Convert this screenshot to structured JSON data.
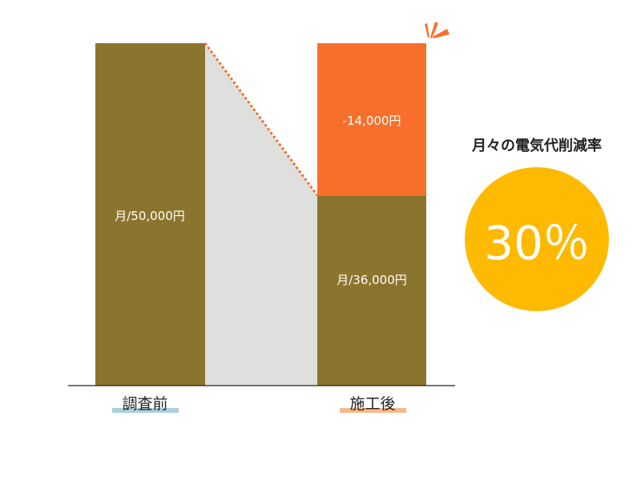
{
  "chart_data": {
    "type": "bar",
    "categories": [
      "調査前",
      "施工後"
    ],
    "series": [
      {
        "values": [
          50000,
          36000
        ]
      },
      {
        "values": [
          0,
          14000
        ]
      }
    ],
    "data_labels": [
      "月/50,000円",
      "月/36,000円",
      "-14,000円"
    ],
    "stacked": true,
    "grid": false
  },
  "summary": {
    "title": "月々の電気代削減率",
    "value": "30％"
  },
  "colors": {
    "bar": "#8B752E",
    "reduction": "#F86F2C",
    "connector": "#DEE0DD",
    "circle": "#FDBA00",
    "before_highlight": "#A9D0DF",
    "after_highlight": "#F9B98A"
  }
}
